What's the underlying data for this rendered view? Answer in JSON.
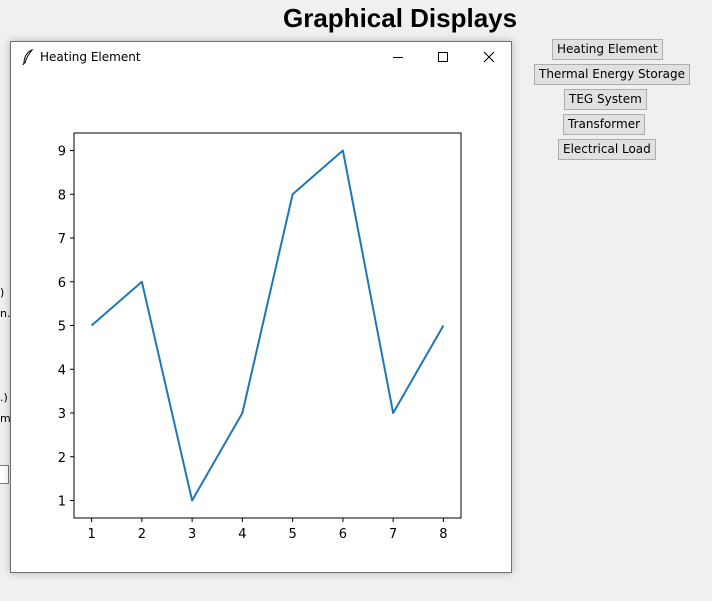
{
  "app": {
    "title": "Graphical Displays"
  },
  "side_buttons": [
    {
      "label": "Heating Element"
    },
    {
      "label": "Thermal Energy Storage"
    },
    {
      "label": "TEG System"
    },
    {
      "label": "Transformer"
    },
    {
      "label": "Electrical Load"
    }
  ],
  "background_fragments": [
    ")",
    "n.)",
    ".)",
    "m."
  ],
  "window": {
    "title": "Heating Element",
    "icon": "feather-icon",
    "controls": [
      "minimize-icon",
      "maximize-icon",
      "close-icon"
    ]
  },
  "chart_data": {
    "type": "line",
    "x": [
      1,
      2,
      3,
      4,
      5,
      6,
      7,
      8
    ],
    "series": [
      {
        "values": [
          5,
          6,
          1,
          3,
          8,
          9,
          3,
          5
        ],
        "color": "#1f77b4"
      }
    ],
    "xticks": [
      1,
      2,
      3,
      4,
      5,
      6,
      7,
      8
    ],
    "yticks": [
      1,
      2,
      3,
      4,
      5,
      6,
      7,
      8,
      9
    ],
    "xlim": [
      0.65,
      8.35
    ],
    "ylim": [
      0.6,
      9.4
    ],
    "grid": false,
    "title": "",
    "xlabel": "",
    "ylabel": ""
  }
}
